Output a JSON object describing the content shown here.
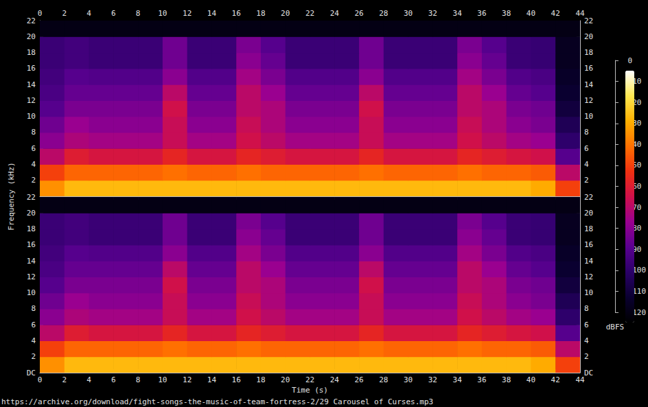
{
  "chart_data": {
    "type": "spectrogram",
    "x_label": "Time (s)",
    "y_label": "Frequency (kHz)",
    "source": "https://archive.org/download/fight-songs-the-music-of-team-fortress-2/29 Carousel of Curses.mp3",
    "xlim": [
      0,
      44
    ],
    "xticks": [
      0,
      2,
      4,
      6,
      8,
      10,
      12,
      14,
      16,
      18,
      20,
      22,
      24,
      26,
      28,
      30,
      32,
      34,
      36,
      38,
      40,
      42,
      44
    ],
    "time_bins": [
      0,
      2,
      4,
      6,
      8,
      10,
      12,
      14,
      16,
      18,
      20,
      22,
      24,
      26,
      28,
      30,
      32,
      34,
      36,
      38,
      40,
      42,
      44
    ],
    "freq_bins": [
      0,
      2,
      4,
      6,
      8,
      10,
      12,
      14,
      16,
      18,
      20,
      22
    ],
    "colorbar_label": "dBFS",
    "colorbar_lim": [
      -120,
      0
    ],
    "colorbar_ticks": [
      -120,
      -110,
      -100,
      -90,
      -80,
      -70,
      -60,
      -50,
      -40,
      -30,
      -20,
      -10,
      0
    ],
    "channels": [
      {
        "ylim": [
          0,
          22
        ],
        "yticks": [
          2,
          4,
          6,
          8,
          10,
          12,
          14,
          16,
          18,
          20,
          22
        ],
        "cells": [
          [
            -30,
            -22,
            -22,
            -22,
            -22,
            -22,
            -22,
            -22,
            -22,
            -22,
            -22,
            -22,
            -22,
            -22,
            -22,
            -22,
            -22,
            -22,
            -22,
            -22,
            -25,
            -45
          ],
          [
            -45,
            -38,
            -38,
            -38,
            -38,
            -36,
            -38,
            -38,
            -36,
            -38,
            -38,
            -38,
            -38,
            -36,
            -38,
            -38,
            -38,
            -36,
            -38,
            -38,
            -40,
            -65
          ],
          [
            -65,
            -55,
            -58,
            -58,
            -58,
            -52,
            -58,
            -58,
            -52,
            -55,
            -58,
            -58,
            -58,
            -52,
            -58,
            -58,
            -58,
            -52,
            -55,
            -58,
            -60,
            -85
          ],
          [
            -75,
            -68,
            -70,
            -70,
            -70,
            -62,
            -70,
            -70,
            -60,
            -65,
            -70,
            -70,
            -70,
            -62,
            -70,
            -70,
            -70,
            -60,
            -65,
            -70,
            -72,
            -95
          ],
          [
            -80,
            -72,
            -75,
            -75,
            -75,
            -62,
            -75,
            -75,
            -62,
            -68,
            -75,
            -75,
            -75,
            -62,
            -75,
            -75,
            -75,
            -62,
            -68,
            -75,
            -78,
            -100
          ],
          [
            -85,
            -78,
            -78,
            -78,
            -78,
            -60,
            -78,
            -78,
            -65,
            -68,
            -78,
            -78,
            -78,
            -60,
            -78,
            -78,
            -78,
            -65,
            -68,
            -78,
            -80,
            -105
          ],
          [
            -88,
            -82,
            -82,
            -82,
            -82,
            -65,
            -82,
            -82,
            -65,
            -72,
            -82,
            -82,
            -82,
            -65,
            -82,
            -82,
            -82,
            -65,
            -72,
            -82,
            -85,
            -108
          ],
          [
            -90,
            -85,
            -86,
            -86,
            -86,
            -75,
            -86,
            -86,
            -70,
            -78,
            -86,
            -86,
            -86,
            -75,
            -86,
            -86,
            -86,
            -70,
            -78,
            -86,
            -88,
            -110
          ],
          [
            -92,
            -90,
            -92,
            -92,
            -92,
            -80,
            -92,
            -92,
            -75,
            -82,
            -92,
            -92,
            -92,
            -80,
            -92,
            -92,
            -92,
            -75,
            -82,
            -92,
            -93,
            -112
          ],
          [
            -92,
            -90,
            -92,
            -92,
            -92,
            -80,
            -92,
            -92,
            -78,
            -85,
            -92,
            -92,
            -92,
            -80,
            -92,
            -92,
            -92,
            -78,
            -85,
            -92,
            -93,
            -112
          ],
          [
            -115,
            -115,
            -115,
            -115,
            -115,
            -115,
            -115,
            -115,
            -115,
            -115,
            -115,
            -115,
            -115,
            -115,
            -115,
            -115,
            -115,
            -115,
            -115,
            -115,
            -115,
            -115
          ]
        ]
      },
      {
        "ylim": [
          0,
          22
        ],
        "yticks": [
          {
            "value": 0,
            "label": "DC"
          },
          2,
          4,
          6,
          8,
          10,
          12,
          14,
          16,
          18,
          20,
          22
        ],
        "cells": [
          [
            -30,
            -22,
            -22,
            -22,
            -22,
            -22,
            -22,
            -22,
            -22,
            -22,
            -22,
            -22,
            -22,
            -22,
            -22,
            -22,
            -22,
            -22,
            -22,
            -22,
            -25,
            -45
          ],
          [
            -45,
            -38,
            -38,
            -38,
            -38,
            -36,
            -38,
            -38,
            -36,
            -38,
            -38,
            -38,
            -38,
            -36,
            -38,
            -38,
            -38,
            -36,
            -38,
            -38,
            -40,
            -65
          ],
          [
            -65,
            -55,
            -58,
            -58,
            -58,
            -52,
            -58,
            -58,
            -52,
            -55,
            -58,
            -58,
            -58,
            -52,
            -58,
            -58,
            -58,
            -52,
            -55,
            -58,
            -60,
            -85
          ],
          [
            -75,
            -68,
            -70,
            -70,
            -70,
            -62,
            -70,
            -70,
            -60,
            -65,
            -70,
            -70,
            -70,
            -62,
            -70,
            -70,
            -70,
            -60,
            -65,
            -70,
            -72,
            -95
          ],
          [
            -80,
            -72,
            -75,
            -75,
            -75,
            -62,
            -75,
            -75,
            -62,
            -68,
            -75,
            -75,
            -75,
            -62,
            -75,
            -75,
            -75,
            -62,
            -68,
            -75,
            -78,
            -100
          ],
          [
            -85,
            -78,
            -78,
            -78,
            -78,
            -60,
            -78,
            -78,
            -65,
            -68,
            -78,
            -78,
            -78,
            -60,
            -78,
            -78,
            -78,
            -65,
            -68,
            -78,
            -80,
            -105
          ],
          [
            -88,
            -82,
            -82,
            -82,
            -82,
            -65,
            -82,
            -82,
            -65,
            -72,
            -82,
            -82,
            -82,
            -65,
            -82,
            -82,
            -82,
            -65,
            -72,
            -82,
            -85,
            -108
          ],
          [
            -90,
            -85,
            -86,
            -86,
            -86,
            -75,
            -86,
            -86,
            -70,
            -78,
            -86,
            -86,
            -86,
            -75,
            -86,
            -86,
            -86,
            -70,
            -78,
            -86,
            -88,
            -110
          ],
          [
            -92,
            -90,
            -92,
            -92,
            -92,
            -80,
            -92,
            -92,
            -75,
            -82,
            -92,
            -92,
            -92,
            -80,
            -92,
            -92,
            -92,
            -75,
            -82,
            -92,
            -93,
            -112
          ],
          [
            -92,
            -90,
            -92,
            -92,
            -92,
            -80,
            -92,
            -92,
            -78,
            -85,
            -92,
            -92,
            -92,
            -80,
            -92,
            -92,
            -92,
            -78,
            -85,
            -92,
            -93,
            -112
          ],
          [
            -115,
            -115,
            -115,
            -115,
            -115,
            -115,
            -115,
            -115,
            -115,
            -115,
            -115,
            -115,
            -115,
            -115,
            -115,
            -115,
            -115,
            -115,
            -115,
            -115,
            -115,
            -115
          ]
        ]
      }
    ]
  }
}
